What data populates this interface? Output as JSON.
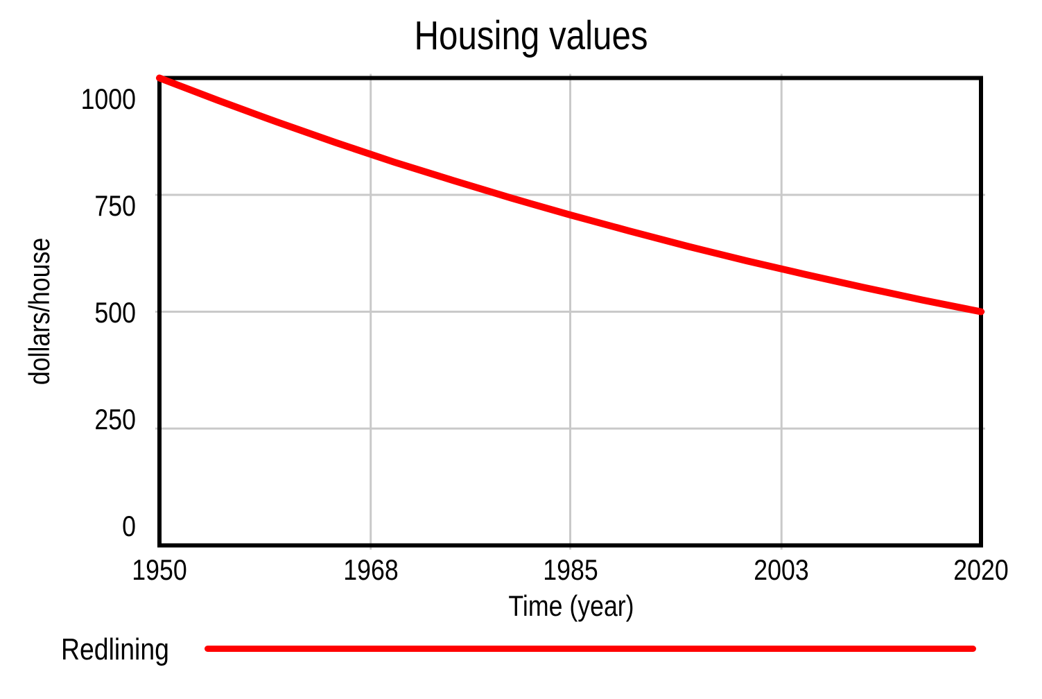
{
  "chart_data": {
    "type": "line",
    "title": "Housing values",
    "xlabel": "Time (year)",
    "ylabel": "dollars/house",
    "xlim": [
      1950,
      2020
    ],
    "ylim": [
      0,
      1000
    ],
    "x_ticks": [
      "1950",
      "1968",
      "1985",
      "2003",
      "2020"
    ],
    "x_tick_years": [
      1950,
      1968,
      1985,
      2003,
      2020
    ],
    "y_ticks": [
      "0",
      "250",
      "500",
      "750",
      "1000"
    ],
    "y_tick_values": [
      0,
      250,
      500,
      750,
      1000
    ],
    "grid": true,
    "legend_position": "bottom-left",
    "colors": {
      "line": "#ff0000",
      "grid": "#c9c9c9",
      "frame": "#000000",
      "background": "#ffffff"
    },
    "legend": [
      {
        "label": "Redlining",
        "color": "#ff0000"
      }
    ],
    "series": [
      {
        "name": "Redlining",
        "x": [
          1950,
          1955,
          1960,
          1965,
          1970,
          1975,
          1980,
          1985,
          1990,
          1995,
          2000,
          2005,
          2010,
          2015,
          2020
        ],
        "values": [
          1000,
          952,
          906,
          862,
          820,
          781,
          743,
          707,
          673,
          640,
          609,
          580,
          552,
          525,
          500
        ]
      }
    ]
  }
}
